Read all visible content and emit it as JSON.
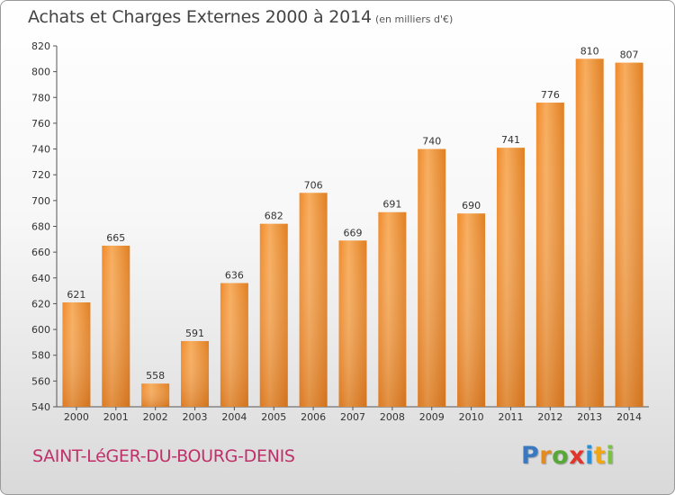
{
  "title": "Achats et Charges Externes 2000 à 2014",
  "subtitle": "(en milliers d'€)",
  "town": "SAINT-LéGER-DU-BOURG-DENIS",
  "logo": {
    "letters": [
      "P",
      "r",
      "o",
      "x",
      "i",
      "t",
      "i"
    ],
    "colors": [
      "#3a78c0",
      "#e58a1f",
      "#58a838",
      "#e0342c",
      "#2a8fd6",
      "#f2a712",
      "#7cc242"
    ]
  },
  "chart_data": {
    "type": "bar",
    "categories": [
      "2000",
      "2001",
      "2002",
      "2003",
      "2004",
      "2005",
      "2006",
      "2007",
      "2008",
      "2009",
      "2010",
      "2011",
      "2012",
      "2013",
      "2014"
    ],
    "values": [
      621,
      665,
      558,
      591,
      636,
      682,
      706,
      669,
      691,
      740,
      690,
      741,
      776,
      810,
      807
    ],
    "ylim": [
      540,
      820
    ],
    "yticks": [
      540,
      560,
      580,
      600,
      620,
      640,
      660,
      680,
      700,
      720,
      740,
      760,
      780,
      800,
      820
    ],
    "grid": false,
    "bar_color": "#f2a04a"
  }
}
